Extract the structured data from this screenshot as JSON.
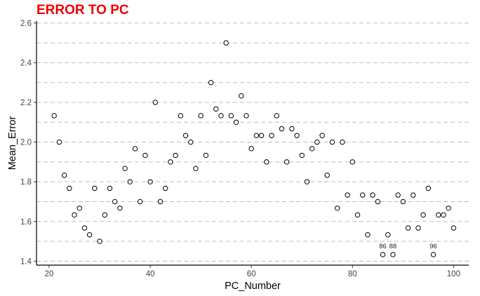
{
  "chart_data": {
    "type": "scatter",
    "title": "ERROR TO PC",
    "xlabel": "PC_Number",
    "ylabel": "Mean_Error",
    "xlim": [
      17.5,
      103
    ],
    "ylim": [
      1.38,
      2.61
    ],
    "x_ticks": [
      20,
      40,
      60,
      80,
      100
    ],
    "y_ticks": [
      1.4,
      1.6,
      1.8,
      2.0,
      2.2,
      2.4,
      2.6
    ],
    "y_tick_labels": [
      "1.4",
      "1.6",
      "1.8",
      "2.0",
      "2.2",
      "2.4",
      "2.6"
    ],
    "grid": "horizontal dashed",
    "colors": {
      "title": "#ee0000",
      "grid": "#bdbdbd",
      "point_stroke": "#000000",
      "point_fill": "#ffffff"
    },
    "points": [
      {
        "x": 21,
        "y": 2.133
      },
      {
        "x": 22,
        "y": 2.0
      },
      {
        "x": 23,
        "y": 1.833
      },
      {
        "x": 24,
        "y": 1.767
      },
      {
        "x": 25,
        "y": 1.633
      },
      {
        "x": 26,
        "y": 1.667
      },
      {
        "x": 27,
        "y": 1.567
      },
      {
        "x": 28,
        "y": 1.533
      },
      {
        "x": 29,
        "y": 1.767
      },
      {
        "x": 30,
        "y": 1.5
      },
      {
        "x": 31,
        "y": 1.633
      },
      {
        "x": 32,
        "y": 1.767
      },
      {
        "x": 33,
        "y": 1.7
      },
      {
        "x": 34,
        "y": 1.667
      },
      {
        "x": 35,
        "y": 1.867
      },
      {
        "x": 36,
        "y": 1.8
      },
      {
        "x": 37,
        "y": 1.967
      },
      {
        "x": 38,
        "y": 1.7
      },
      {
        "x": 39,
        "y": 1.933
      },
      {
        "x": 40,
        "y": 1.8
      },
      {
        "x": 41,
        "y": 2.2
      },
      {
        "x": 42,
        "y": 1.7
      },
      {
        "x": 43,
        "y": 1.767
      },
      {
        "x": 44,
        "y": 1.9
      },
      {
        "x": 45,
        "y": 1.933
      },
      {
        "x": 46,
        "y": 2.133
      },
      {
        "x": 47,
        "y": 2.033
      },
      {
        "x": 48,
        "y": 2.0
      },
      {
        "x": 49,
        "y": 1.867
      },
      {
        "x": 50,
        "y": 2.133
      },
      {
        "x": 51,
        "y": 1.933
      },
      {
        "x": 52,
        "y": 2.3
      },
      {
        "x": 53,
        "y": 2.167
      },
      {
        "x": 54,
        "y": 2.133
      },
      {
        "x": 55,
        "y": 2.5
      },
      {
        "x": 56,
        "y": 2.133
      },
      {
        "x": 57,
        "y": 2.1
      },
      {
        "x": 58,
        "y": 2.233
      },
      {
        "x": 59,
        "y": 2.133
      },
      {
        "x": 60,
        "y": 1.967
      },
      {
        "x": 61,
        "y": 2.033
      },
      {
        "x": 62,
        "y": 2.033
      },
      {
        "x": 63,
        "y": 1.9
      },
      {
        "x": 64,
        "y": 2.033
      },
      {
        "x": 65,
        "y": 2.133
      },
      {
        "x": 66,
        "y": 2.067
      },
      {
        "x": 67,
        "y": 1.9
      },
      {
        "x": 68,
        "y": 2.067
      },
      {
        "x": 69,
        "y": 2.033
      },
      {
        "x": 70,
        "y": 1.933
      },
      {
        "x": 71,
        "y": 1.8
      },
      {
        "x": 72,
        "y": 1.967
      },
      {
        "x": 73,
        "y": 2.0
      },
      {
        "x": 74,
        "y": 2.033
      },
      {
        "x": 75,
        "y": 1.833
      },
      {
        "x": 76,
        "y": 2.0
      },
      {
        "x": 77,
        "y": 1.667
      },
      {
        "x": 78,
        "y": 2.0
      },
      {
        "x": 79,
        "y": 1.733
      },
      {
        "x": 80,
        "y": 1.9
      },
      {
        "x": 81,
        "y": 1.633
      },
      {
        "x": 82,
        "y": 1.733
      },
      {
        "x": 83,
        "y": 1.533
      },
      {
        "x": 84,
        "y": 1.733
      },
      {
        "x": 85,
        "y": 1.7
      },
      {
        "x": 86,
        "y": 1.433,
        "label": "86"
      },
      {
        "x": 87,
        "y": 1.533
      },
      {
        "x": 88,
        "y": 1.433,
        "label": "88"
      },
      {
        "x": 89,
        "y": 1.733
      },
      {
        "x": 90,
        "y": 1.7
      },
      {
        "x": 91,
        "y": 1.567
      },
      {
        "x": 92,
        "y": 1.733
      },
      {
        "x": 93,
        "y": 1.567
      },
      {
        "x": 94,
        "y": 1.633
      },
      {
        "x": 95,
        "y": 1.767
      },
      {
        "x": 96,
        "y": 1.433,
        "label": "96"
      },
      {
        "x": 97,
        "y": 1.633
      },
      {
        "x": 98,
        "y": 1.633
      },
      {
        "x": 99,
        "y": 1.667
      },
      {
        "x": 100,
        "y": 1.567
      }
    ]
  }
}
